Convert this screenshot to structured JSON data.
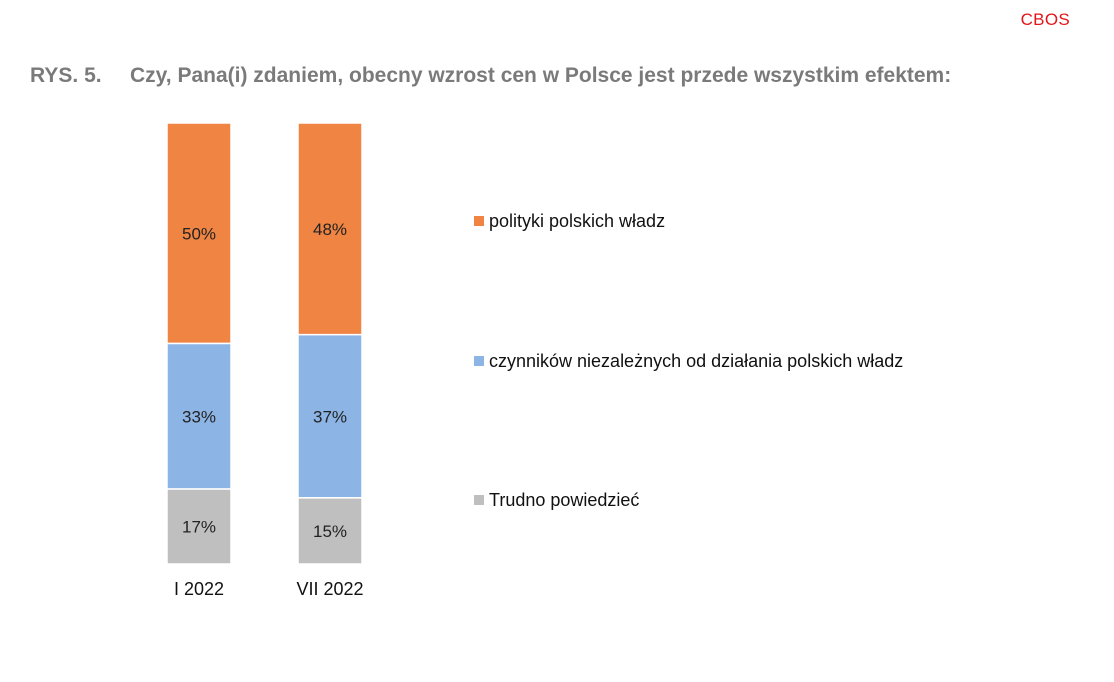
{
  "header": {
    "brand": "CBOS"
  },
  "chart_data": {
    "type": "bar",
    "stacked": true,
    "figure_number": "RYS. 5.",
    "title": "Czy, Pana(i) zdaniem, obecny wzrost cen w Polsce jest przede wszystkim efektem:",
    "categories": [
      "I 2022",
      "VII 2022"
    ],
    "series": [
      {
        "name": "polityki polskich władz",
        "color": "#f08543",
        "values": [
          50,
          48
        ]
      },
      {
        "name": "czynników niezależnych od działania polskich władz",
        "color": "#8cb4e5",
        "values": [
          33,
          37
        ]
      },
      {
        "name": "Trudno powiedzieć",
        "color": "#bfbfbf",
        "values": [
          17,
          15
        ]
      }
    ],
    "value_suffix": "%",
    "ylim": [
      0,
      100
    ],
    "grid": false,
    "legend_position": "right"
  }
}
